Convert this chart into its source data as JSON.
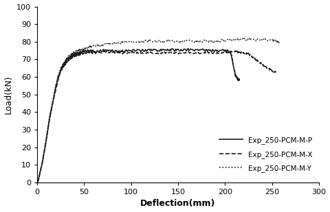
{
  "title": "",
  "xlabel": "Deflection(mm)",
  "ylabel": "Load(kN)",
  "xlim": [
    0,
    300
  ],
  "ylim": [
    0,
    100
  ],
  "xticks": [
    0,
    50,
    100,
    150,
    200,
    250,
    300
  ],
  "yticks": [
    0,
    10,
    20,
    30,
    40,
    50,
    60,
    70,
    80,
    90,
    100
  ],
  "legend": [
    {
      "label": "Exp_250-PCM-M-P",
      "linestyle": "solid"
    },
    {
      "label": "Exp_250-PCM-M-X",
      "linestyle": "dashed"
    },
    {
      "label": "Exp_250-PCM-M-Y",
      "linestyle": "dotted"
    }
  ],
  "line_color": "#1a1a1a",
  "line_width": 1.2,
  "background_color": "#ffffff",
  "series_P": {
    "x": [
      0,
      1,
      2,
      3,
      5,
      7,
      9,
      11,
      13,
      16,
      19,
      22,
      25,
      28,
      31,
      34,
      37,
      40,
      43,
      46,
      50,
      55,
      60,
      70,
      80,
      90,
      100,
      110,
      120,
      130,
      140,
      150,
      160,
      170,
      180,
      190,
      200,
      205,
      207,
      209,
      211,
      213,
      215
    ],
    "y": [
      0,
      1,
      3,
      6,
      10,
      16,
      22,
      29,
      36,
      44,
      52,
      59,
      64,
      67,
      69,
      71,
      72,
      73,
      73.5,
      74,
      74.5,
      75,
      74.5,
      75,
      75,
      74.5,
      75,
      75,
      75.5,
      75,
      75.5,
      75,
      75.5,
      75,
      75.5,
      75,
      75,
      74.5,
      72,
      66,
      61,
      59,
      58.5
    ]
  },
  "series_X": {
    "x": [
      0,
      1,
      2,
      3,
      5,
      7,
      9,
      11,
      13,
      16,
      19,
      22,
      25,
      28,
      31,
      34,
      37,
      40,
      43,
      46,
      50,
      55,
      60,
      70,
      80,
      90,
      100,
      110,
      120,
      130,
      140,
      150,
      160,
      170,
      180,
      190,
      200,
      210,
      215,
      220,
      225,
      230,
      235,
      240,
      245,
      250,
      255
    ],
    "y": [
      0,
      1,
      3,
      6,
      10,
      16,
      22,
      29,
      36,
      44,
      51,
      58,
      63,
      66,
      68,
      70,
      71,
      72,
      72.5,
      73,
      73.5,
      74,
      73.5,
      74,
      74,
      73.5,
      74,
      73.5,
      74,
      73.5,
      74,
      73.5,
      74,
      73.5,
      74,
      73.5,
      74,
      74.5,
      74,
      73.5,
      73,
      71,
      69,
      67,
      65,
      63.5,
      62.5
    ]
  },
  "series_Y": {
    "x": [
      0,
      1,
      2,
      3,
      5,
      7,
      9,
      11,
      13,
      16,
      19,
      22,
      25,
      28,
      31,
      34,
      37,
      40,
      43,
      46,
      50,
      55,
      60,
      70,
      80,
      90,
      100,
      110,
      120,
      130,
      140,
      150,
      160,
      170,
      180,
      190,
      200,
      210,
      220,
      230,
      240,
      250,
      255,
      258
    ],
    "y": [
      0,
      1,
      3,
      6,
      10,
      16,
      23,
      30,
      37,
      45,
      53,
      60,
      65,
      68,
      70,
      72,
      73,
      74,
      75,
      75.5,
      76,
      77,
      77.5,
      78,
      79,
      79.5,
      80,
      80,
      80.5,
      80,
      80.5,
      80,
      80.5,
      80,
      80.5,
      80,
      81,
      81,
      81.5,
      81,
      81.5,
      81,
      80.5,
      80
    ]
  }
}
